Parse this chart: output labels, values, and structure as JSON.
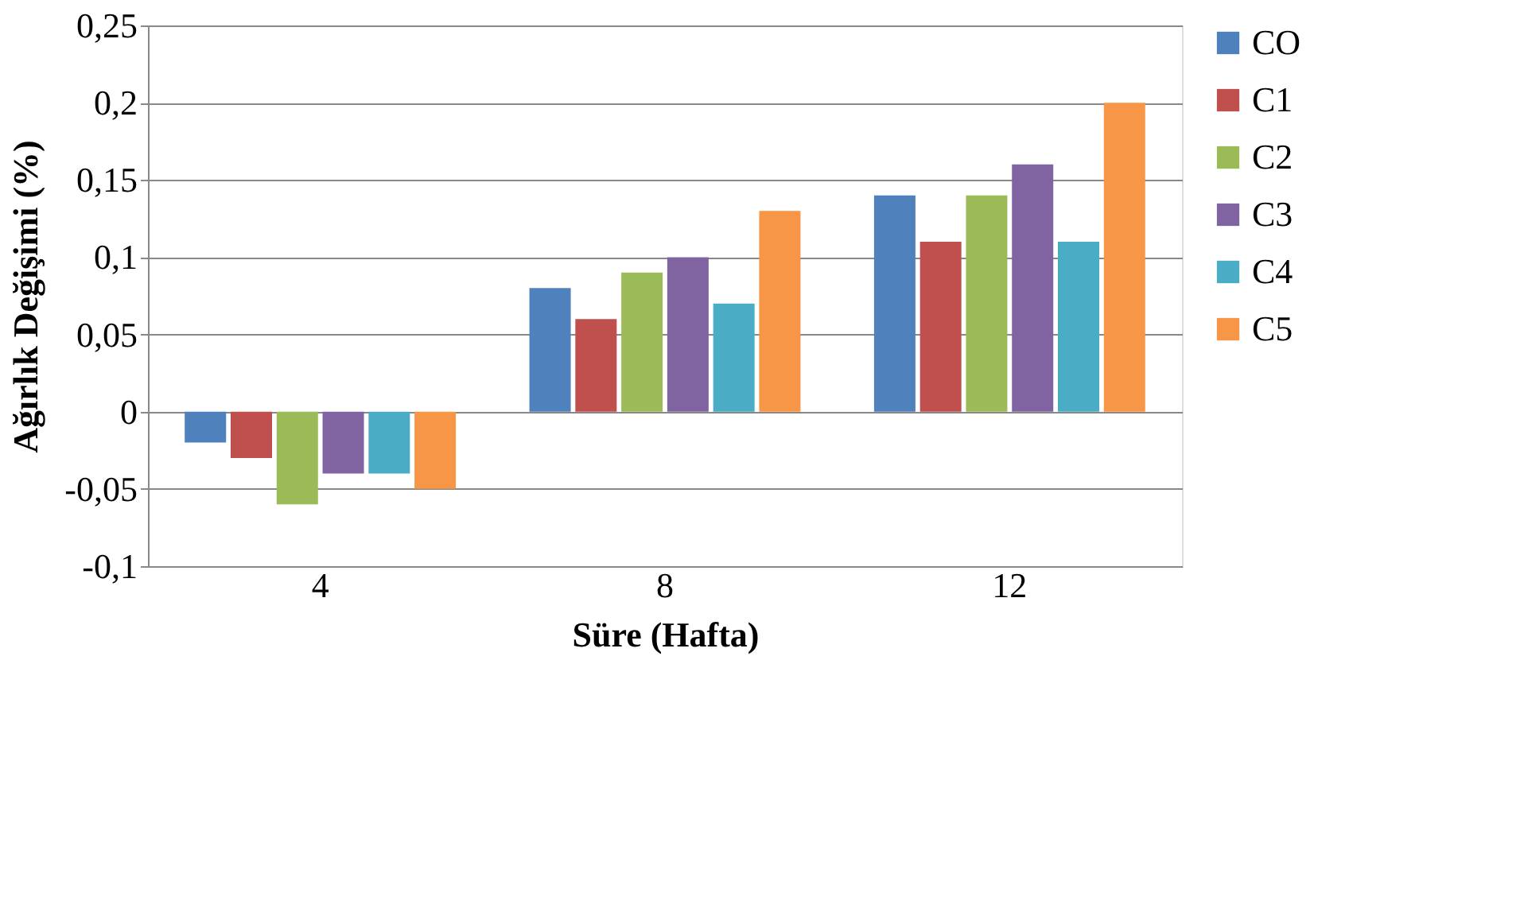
{
  "chart_data": {
    "type": "bar",
    "xlabel": "Süre (Hafta)",
    "ylabel": "Ağırlık Değişimi (%)",
    "categories": [
      "4",
      "8",
      "12"
    ],
    "series": [
      {
        "name": "CO",
        "color": "#4f81bd",
        "values": [
          -0.02,
          0.08,
          0.14
        ]
      },
      {
        "name": "C1",
        "color": "#c0504d",
        "values": [
          -0.03,
          0.06,
          0.11
        ]
      },
      {
        "name": "C2",
        "color": "#9bbb59",
        "values": [
          -0.06,
          0.09,
          0.14
        ]
      },
      {
        "name": "C3",
        "color": "#8064a2",
        "values": [
          -0.04,
          0.1,
          0.16
        ]
      },
      {
        "name": "C4",
        "color": "#4bacc6",
        "values": [
          -0.04,
          0.07,
          0.11
        ]
      },
      {
        "name": "C5",
        "color": "#f79646",
        "values": [
          -0.05,
          0.13,
          0.2
        ]
      }
    ],
    "ylim": [
      -0.1,
      0.25
    ],
    "yticks": [
      {
        "value": -0.1,
        "label": "-0,1"
      },
      {
        "value": -0.05,
        "label": "-0,05"
      },
      {
        "value": 0,
        "label": "0"
      },
      {
        "value": 0.05,
        "label": "0,05"
      },
      {
        "value": 0.1,
        "label": "0,1"
      },
      {
        "value": 0.15,
        "label": "0,15"
      },
      {
        "value": 0.2,
        "label": "0,2"
      },
      {
        "value": 0.25,
        "label": "0,25"
      }
    ],
    "grid": "y",
    "legend": "right"
  }
}
